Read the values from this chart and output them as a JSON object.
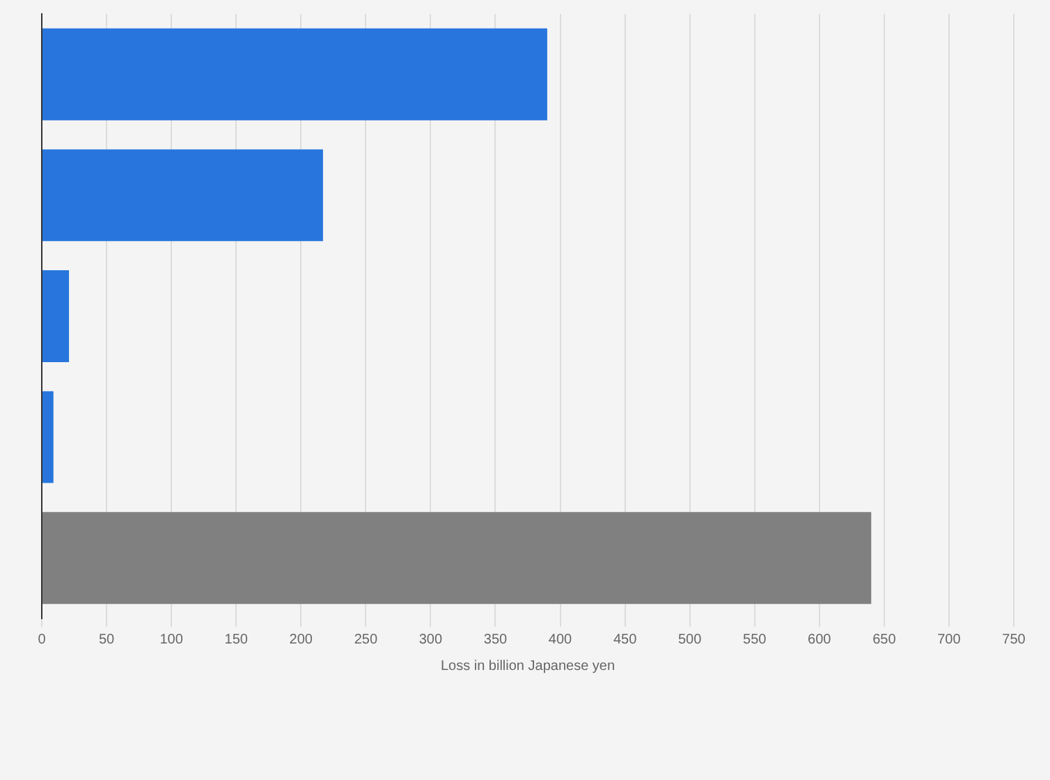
{
  "chart_data": {
    "type": "bar",
    "orientation": "horizontal",
    "xlabel": "Loss in billion Japanese yen",
    "categories": [
      null,
      null,
      null,
      null,
      null
    ],
    "values": [
      390,
      217,
      21,
      9,
      640
    ],
    "colors": [
      "#2876dd",
      "#2876dd",
      "#2876dd",
      "#2876dd",
      "#808080"
    ],
    "xlim": [
      0,
      750
    ],
    "xticks": [
      0,
      50,
      100,
      150,
      200,
      250,
      300,
      350,
      400,
      450,
      500,
      550,
      600,
      650,
      700,
      750
    ],
    "grid": "x",
    "tick_labels": "x",
    "legend": false
  }
}
